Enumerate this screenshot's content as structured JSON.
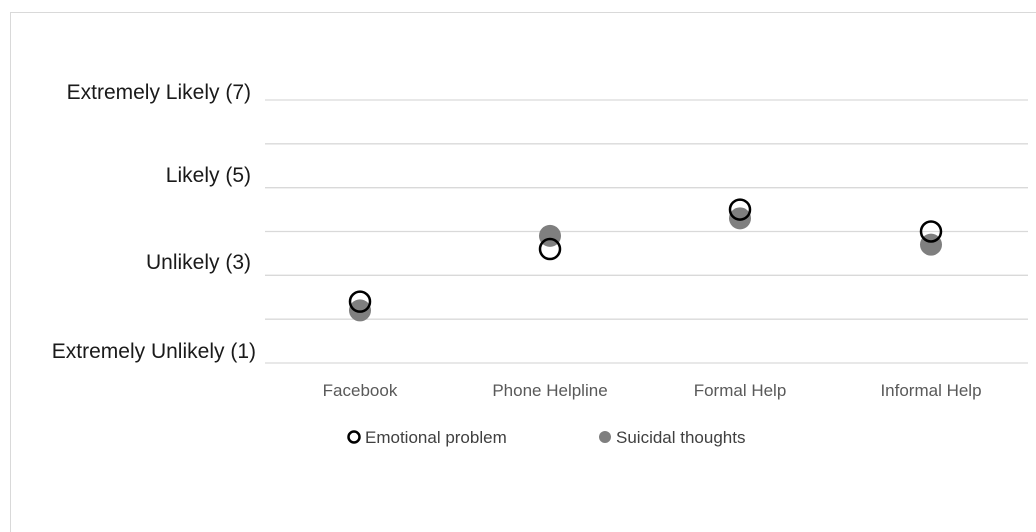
{
  "chart_data": {
    "type": "scatter",
    "title": "",
    "xlabel": "",
    "ylabel": "",
    "categories": [
      "Facebook",
      "Phone Helpline",
      "Formal Help",
      "Informal Help"
    ],
    "ylim": [
      1,
      7
    ],
    "y_tick_values": [
      1,
      3,
      5,
      7
    ],
    "y_tick_labels": [
      "Extremely Unlikely (1)",
      "Unlikely (3)",
      "Likely (5)",
      "Extremely Likely (7)"
    ],
    "grid": true,
    "legend_position": "bottom",
    "series": [
      {
        "name": "Emotional problem",
        "marker": "hollow-circle",
        "color": "#000000",
        "values": [
          2.4,
          3.6,
          4.5,
          4.0
        ]
      },
      {
        "name": "Suicidal thoughts",
        "marker": "filled-circle",
        "color": "#7f7f7f",
        "values": [
          2.2,
          3.9,
          4.3,
          3.7
        ]
      }
    ]
  }
}
